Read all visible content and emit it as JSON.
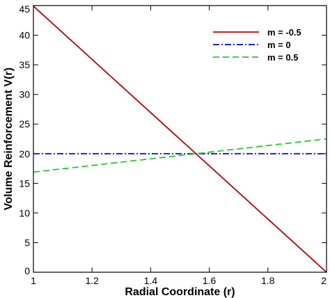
{
  "chart_data": {
    "type": "line",
    "title": "",
    "xlabel": "Radial Coordinate (r)",
    "ylabel": "Volume Reinforcement V(r)",
    "xlim": [
      1,
      2
    ],
    "ylim": [
      0,
      45
    ],
    "xticks": [
      1,
      1.2,
      1.4,
      1.6,
      1.8,
      2
    ],
    "xtick_labels": [
      "1",
      "1.2",
      "1.4",
      "1.6",
      "1.8",
      "2"
    ],
    "yticks": [
      0,
      5,
      10,
      15,
      20,
      25,
      30,
      35,
      40,
      45
    ],
    "ytick_labels": [
      "0",
      "5",
      "10",
      "15",
      "20",
      "25",
      "30",
      "35",
      "40",
      "45"
    ],
    "grid": false,
    "legend_position": "top-right",
    "series": [
      {
        "name": "m = -0.5",
        "color": "#c00000",
        "style": "solid",
        "x": [
          1,
          2
        ],
        "y": [
          44.9,
          0
        ]
      },
      {
        "name": "m = 0",
        "color": "#0000e0",
        "style": "dashdot",
        "x": [
          1,
          2
        ],
        "y": [
          20,
          20
        ]
      },
      {
        "name": "m = 0.5",
        "color": "#22cc22",
        "style": "dashed",
        "x": [
          1,
          2
        ],
        "y": [
          16.9,
          22.5
        ]
      }
    ]
  }
}
